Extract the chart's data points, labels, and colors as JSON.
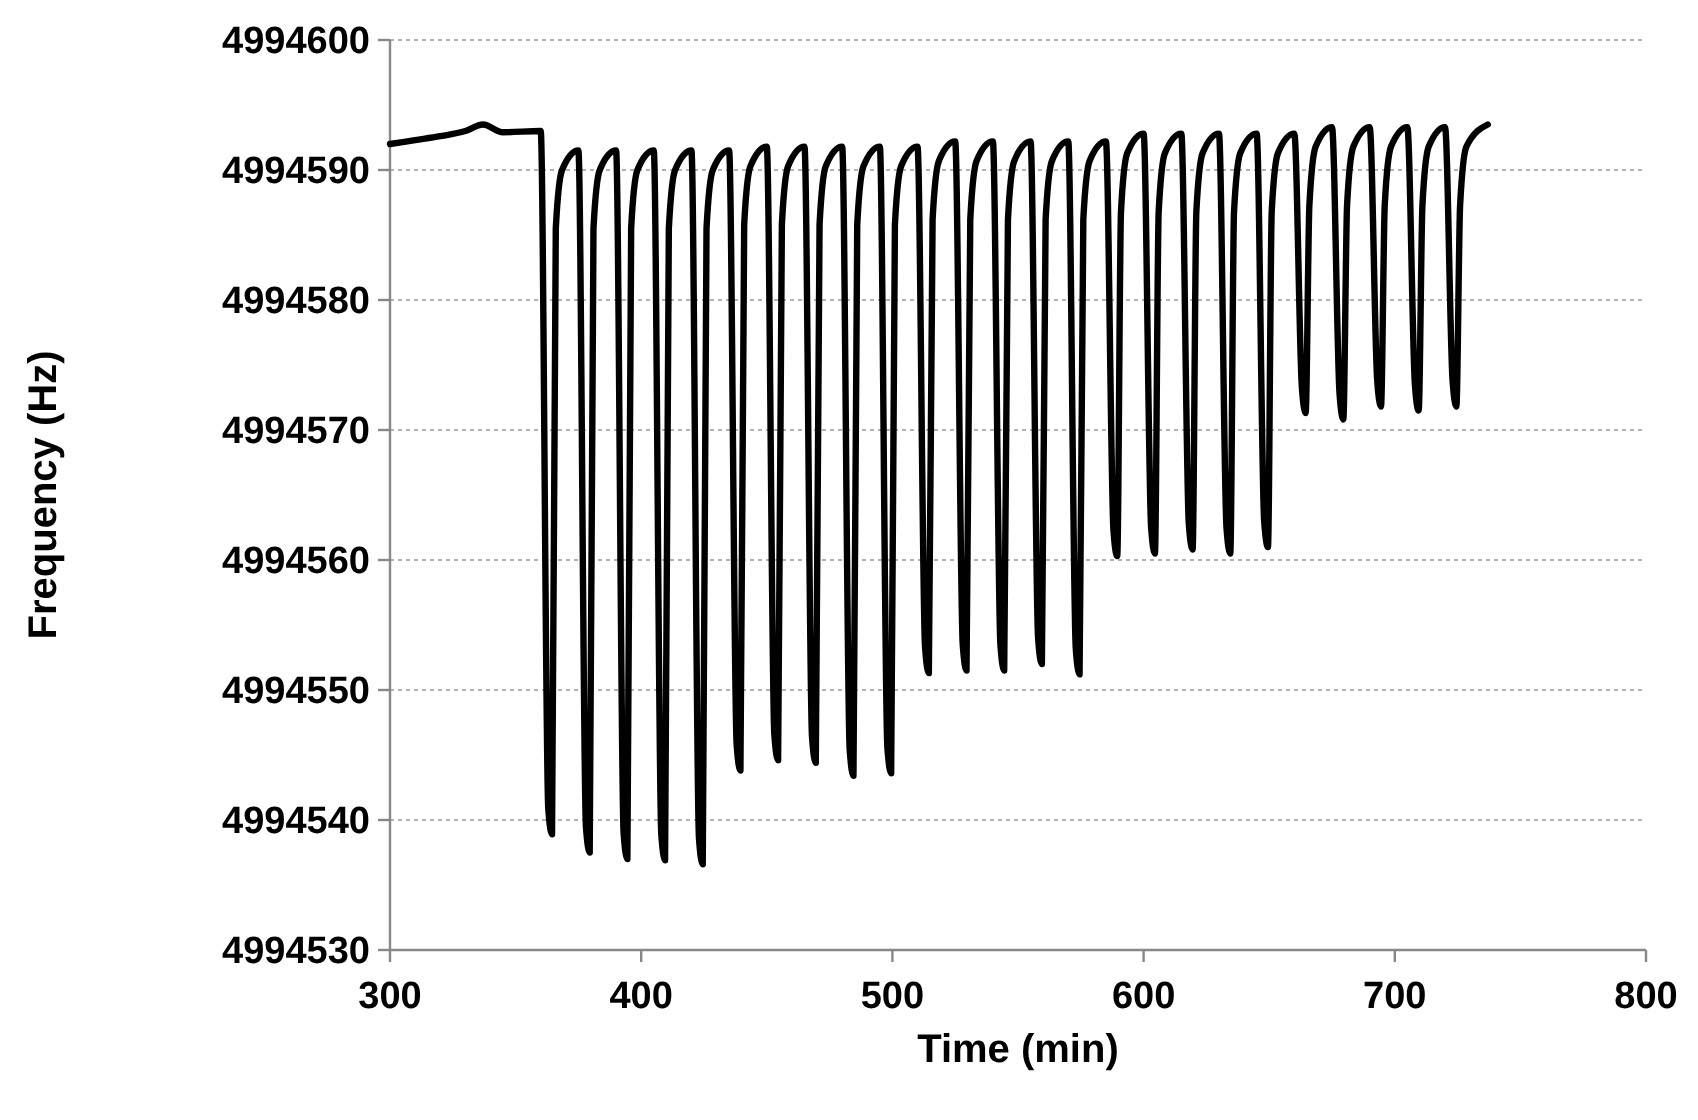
{
  "chart_data": {
    "type": "line",
    "xlabel": "Time (min)",
    "ylabel": "Frequency (Hz)",
    "xlim": [
      300,
      800
    ],
    "xticks": [
      300,
      400,
      500,
      600,
      700,
      800
    ],
    "ylim": [
      4994530,
      4994600
    ],
    "yticks": [
      4994530,
      4994540,
      4994550,
      4994560,
      4994570,
      4994580,
      4994590,
      4994600
    ],
    "grid": "y",
    "marker": "none",
    "line_style": "solid",
    "series": [
      {
        "color": "#000000",
        "x": [
          300,
          310,
          320,
          330,
          337,
          345,
          360,
          363,
          364.5,
          366,
          368.5,
          375,
          378,
          379.5,
          381,
          383.5,
          390,
          393,
          394.5,
          396,
          398.5,
          405,
          408,
          409.5,
          411,
          413.5,
          420,
          423,
          424.5,
          426,
          428.5,
          435,
          438,
          439.5,
          441,
          443.5,
          450,
          453,
          454.5,
          456,
          458.5,
          465,
          468,
          469.5,
          471,
          473.5,
          480,
          483,
          484.5,
          486,
          488.5,
          495,
          498,
          499.5,
          501,
          503.5,
          510,
          513,
          514.5,
          516,
          518.5,
          525,
          528,
          529.5,
          531,
          533.5,
          540,
          543,
          544.5,
          546,
          548.5,
          555,
          558,
          559.5,
          561,
          563.5,
          570,
          573,
          574.5,
          576,
          578.5,
          585,
          588,
          589.5,
          591,
          593.5,
          600,
          603,
          604.5,
          606,
          608.5,
          615,
          618,
          619.5,
          621,
          623.5,
          630,
          633,
          634.5,
          636,
          638.5,
          645,
          648,
          649.5,
          651,
          653.5,
          660,
          663,
          664.5,
          666,
          668.5,
          675,
          678,
          679.5,
          681,
          683.5,
          690,
          693,
          694.5,
          696,
          698.5,
          705,
          708,
          709.5,
          711,
          713.5,
          720,
          723,
          724.5,
          726,
          728.5,
          737
        ],
        "values": [
          4994592.0,
          4994592.3,
          4994592.6,
          4994593.0,
          4994593.5,
          4994592.9,
          4994593.0,
          4994540.9,
          4994538.9,
          4994585.5,
          4994590.0,
          4994591.5,
          4994539.5,
          4994537.5,
          4994585.5,
          4994590.0,
          4994591.5,
          4994539.0,
          4994537.0,
          4994585.5,
          4994590.0,
          4994591.5,
          4994538.9,
          4994536.9,
          4994585.5,
          4994590.0,
          4994591.5,
          4994538.6,
          4994536.6,
          4994585.5,
          4994590.0,
          4994591.5,
          4994545.8,
          4994543.8,
          4994585.8,
          4994590.3,
          4994591.8,
          4994546.6,
          4994544.6,
          4994585.8,
          4994590.3,
          4994591.8,
          4994546.4,
          4994544.4,
          4994585.8,
          4994590.3,
          4994591.8,
          4994545.4,
          4994543.4,
          4994585.8,
          4994590.3,
          4994591.8,
          4994545.6,
          4994543.6,
          4994585.8,
          4994590.3,
          4994591.8,
          4994553.3,
          4994551.3,
          4994586.2,
          4994590.7,
          4994592.2,
          4994553.5,
          4994551.5,
          4994586.2,
          4994590.7,
          4994592.2,
          4994553.5,
          4994551.5,
          4994586.2,
          4994590.7,
          4994592.2,
          4994554.0,
          4994552.0,
          4994586.2,
          4994590.7,
          4994592.2,
          4994553.2,
          4994551.2,
          4994586.2,
          4994590.7,
          4994592.2,
          4994562.3,
          4994560.3,
          4994586.8,
          4994591.3,
          4994592.8,
          4994562.5,
          4994560.5,
          4994586.8,
          4994591.3,
          4994592.8,
          4994562.8,
          4994560.8,
          4994586.8,
          4994591.3,
          4994592.8,
          4994562.5,
          4994560.5,
          4994586.8,
          4994591.3,
          4994592.8,
          4994563.0,
          4994561.0,
          4994586.8,
          4994591.3,
          4994592.8,
          4994573.3,
          4994571.3,
          4994587.3,
          4994591.8,
          4994593.3,
          4994572.8,
          4994570.8,
          4994587.3,
          4994591.8,
          4994593.3,
          4994573.8,
          4994571.8,
          4994587.3,
          4994591.8,
          4994593.3,
          4994573.5,
          4994571.5,
          4994587.3,
          4994591.8,
          4994593.3,
          4994573.8,
          4994571.8,
          4994587.3,
          4994591.8,
          4994593.5
        ]
      }
    ]
  }
}
